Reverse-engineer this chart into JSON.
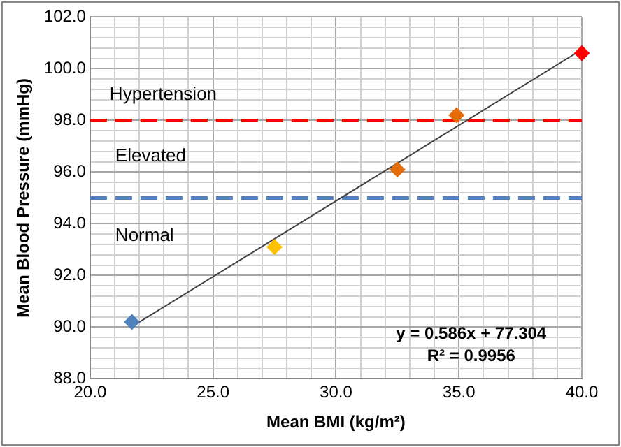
{
  "chart_data": {
    "type": "scatter",
    "xlabel": "Mean BMI (kg/m²)",
    "ylabel": "Mean Blood Pressure (mmHg)",
    "xlim": [
      20,
      40
    ],
    "ylim": [
      88,
      102
    ],
    "xticks": [
      {
        "value": 20,
        "label": "20.0"
      },
      {
        "value": 21,
        "label": null
      },
      {
        "value": 22,
        "label": null
      },
      {
        "value": 23,
        "label": null
      },
      {
        "value": 24,
        "label": null
      },
      {
        "value": 25,
        "label": "25.0"
      },
      {
        "value": 26,
        "label": null
      },
      {
        "value": 27,
        "label": null
      },
      {
        "value": 28,
        "label": null
      },
      {
        "value": 29,
        "label": null
      },
      {
        "value": 30,
        "label": "30.0"
      },
      {
        "value": 31,
        "label": null
      },
      {
        "value": 32,
        "label": null
      },
      {
        "value": 33,
        "label": null
      },
      {
        "value": 34,
        "label": null
      },
      {
        "value": 35,
        "label": "35.0"
      },
      {
        "value": 36,
        "label": null
      },
      {
        "value": 37,
        "label": null
      },
      {
        "value": 38,
        "label": null
      },
      {
        "value": 39,
        "label": null
      },
      {
        "value": 40,
        "label": "40.0"
      }
    ],
    "yticks": [
      {
        "value": 88,
        "label": "88.0"
      },
      {
        "value": 88.4,
        "label": null
      },
      {
        "value": 88.8,
        "label": null
      },
      {
        "value": 89.2,
        "label": null
      },
      {
        "value": 89.6,
        "label": null
      },
      {
        "value": 90,
        "label": "90.0"
      },
      {
        "value": 90.4,
        "label": null
      },
      {
        "value": 90.8,
        "label": null
      },
      {
        "value": 91.2,
        "label": null
      },
      {
        "value": 91.6,
        "label": null
      },
      {
        "value": 92,
        "label": "92.0"
      },
      {
        "value": 92.4,
        "label": null
      },
      {
        "value": 92.8,
        "label": null
      },
      {
        "value": 93.2,
        "label": null
      },
      {
        "value": 93.6,
        "label": null
      },
      {
        "value": 94,
        "label": "94.0"
      },
      {
        "value": 94.4,
        "label": null
      },
      {
        "value": 94.8,
        "label": null
      },
      {
        "value": 95.2,
        "label": null
      },
      {
        "value": 95.6,
        "label": null
      },
      {
        "value": 96,
        "label": "96.0"
      },
      {
        "value": 96.4,
        "label": null
      },
      {
        "value": 96.8,
        "label": null
      },
      {
        "value": 97.2,
        "label": null
      },
      {
        "value": 97.6,
        "label": null
      },
      {
        "value": 98,
        "label": "98.0"
      },
      {
        "value": 98.4,
        "label": null
      },
      {
        "value": 98.8,
        "label": null
      },
      {
        "value": 99.2,
        "label": null
      },
      {
        "value": 99.6,
        "label": null
      },
      {
        "value": 100,
        "label": "100.0"
      },
      {
        "value": 100.4,
        "label": null
      },
      {
        "value": 100.8,
        "label": null
      },
      {
        "value": 101.2,
        "label": null
      },
      {
        "value": 101.6,
        "label": null
      },
      {
        "value": 102,
        "label": "102.0"
      }
    ],
    "series": [
      {
        "type": "scatter",
        "x": [
          21.7,
          27.5,
          32.5,
          34.9,
          40.0
        ],
        "values": [
          90.2,
          93.1,
          96.1,
          98.2,
          100.6
        ],
        "colors": [
          "#4f81bd",
          "#ffc000",
          "#e46c0a",
          "#e46c0a",
          "#ff0000"
        ],
        "marker": "diamond"
      },
      {
        "type": "line",
        "x": [
          21.7,
          40.0
        ],
        "values": [
          90.02,
          100.74
        ],
        "color": "#404040",
        "marker": "none",
        "line_style": "solid"
      }
    ],
    "ref_lines": [
      {
        "axis": "y",
        "value": 98,
        "color": "#ff0000",
        "line_style": "dashed"
      },
      {
        "axis": "y",
        "value": 95,
        "color": "#4f81bd",
        "line_style": "dashed"
      }
    ],
    "annotations": [
      "Hypertension",
      "Elevated",
      "Normal",
      "y = 0.586x + 77.304",
      "R² = 0.9956"
    ],
    "grid": true,
    "legend": false
  }
}
